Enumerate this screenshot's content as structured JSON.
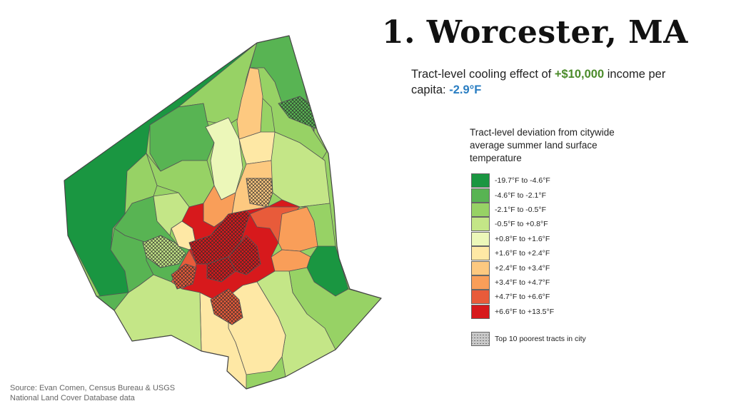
{
  "title": "1. Worcester, MA",
  "subtitle": {
    "prefix": "Tract-level cooling effect of ",
    "income": "+$10,000",
    "middle": " income per capita: ",
    "effect": "-2.9°F"
  },
  "legend": {
    "title": "Tract-level deviation from citywide average summer land surface temperature",
    "items": [
      {
        "label": "-19.7°F to -4.6°F",
        "color": "#1a9641"
      },
      {
        "label": "-4.6°F to -2.1°F",
        "color": "#58b453"
      },
      {
        "label": "-2.1°F to -0.5°F",
        "color": "#97d265"
      },
      {
        "label": "-0.5°F to +0.8°F",
        "color": "#c4e687"
      },
      {
        "label": "+0.8°F to +1.6°F",
        "color": "#ecf7b9"
      },
      {
        "label": "+1.6°F to +2.4°F",
        "color": "#fee8a5"
      },
      {
        "label": "+2.4°F to +3.4°F",
        "color": "#fdc980"
      },
      {
        "label": "+3.4°F to +4.7°F",
        "color": "#f99e59"
      },
      {
        "label": "+4.7°F to +6.6°F",
        "color": "#e85b3a"
      },
      {
        "label": "+6.6°F to +13.5°F",
        "color": "#d7191c"
      }
    ],
    "poor_label": "Top 10 poorest tracts in city"
  },
  "source": {
    "line1": "Source: Evan Comen, Census Bureau & USGS",
    "line2": "National Land Cover Database data"
  }
}
